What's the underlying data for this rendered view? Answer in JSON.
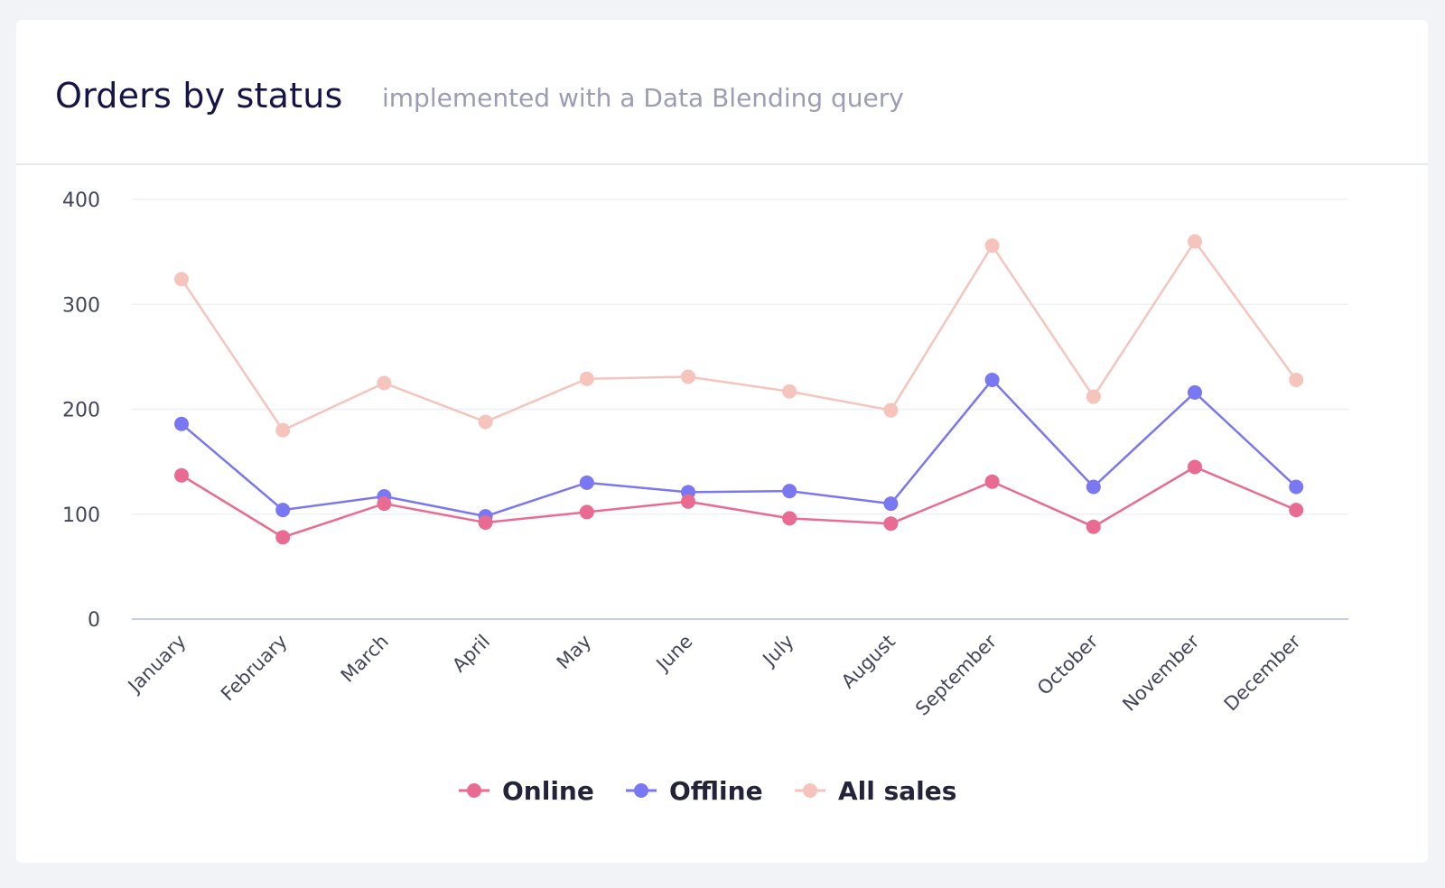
{
  "card": {
    "title": "Orders by status",
    "subtitle": "implemented with a Data Blending query"
  },
  "chart_data": {
    "type": "line",
    "title": "Orders by status",
    "subtitle": "implemented with a Data Blending query",
    "xlabel": "",
    "ylabel": "",
    "categories": [
      "January",
      "February",
      "March",
      "April",
      "May",
      "June",
      "July",
      "August",
      "September",
      "October",
      "November",
      "December"
    ],
    "ylim": [
      0,
      400
    ],
    "yticks": [
      0,
      100,
      200,
      300,
      400
    ],
    "grid": true,
    "legend_position": "bottom",
    "series": [
      {
        "name": "Online",
        "color": "#ea6b92",
        "values": [
          137,
          78,
          110,
          92,
          102,
          112,
          96,
          91,
          131,
          88,
          145,
          104
        ]
      },
      {
        "name": "Offline",
        "color": "#7a77f2",
        "values": [
          186,
          104,
          117,
          98,
          130,
          121,
          122,
          110,
          228,
          126,
          216,
          126
        ]
      },
      {
        "name": "All sales",
        "color": "#f5c5bd",
        "values": [
          324,
          180,
          225,
          188,
          229,
          231,
          217,
          199,
          356,
          212,
          360,
          228
        ]
      }
    ]
  }
}
